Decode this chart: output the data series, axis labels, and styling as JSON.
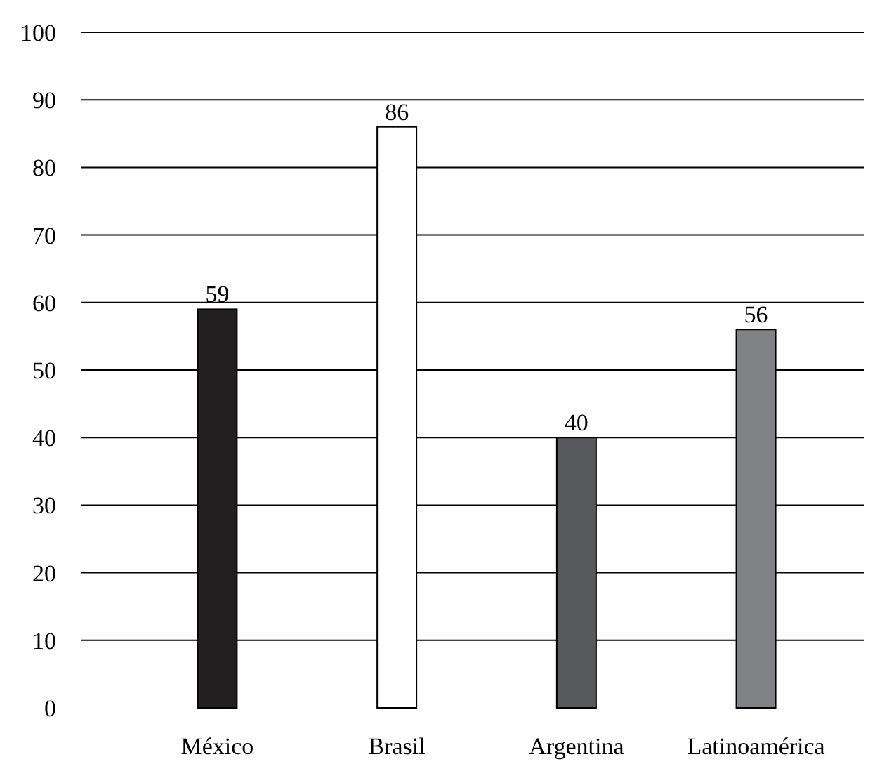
{
  "chart_data": {
    "type": "bar",
    "categories": [
      "México",
      "Brasil",
      "Argentina",
      "Latinoamérica"
    ],
    "values": [
      59,
      86,
      40,
      56
    ],
    "colors": [
      "#231f20",
      "#ffffff",
      "#58595b",
      "#808285"
    ],
    "ylim": [
      0,
      100
    ],
    "yticks": [
      0,
      10,
      20,
      30,
      40,
      50,
      60,
      70,
      80,
      90,
      100
    ],
    "grid": "y",
    "data_labels": true
  }
}
